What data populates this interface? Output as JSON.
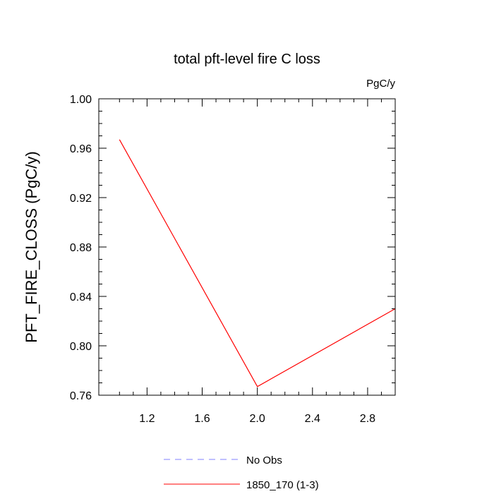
{
  "chart_data": {
    "type": "line",
    "title": "total pft-level fire C loss",
    "units_label": "PgC/y",
    "xlabel": "",
    "ylabel": "PFT_FIRE_CLOSS  (PgC/y)",
    "xlim": [
      0.85,
      3.0
    ],
    "ylim": [
      0.76,
      1.0
    ],
    "x_ticks": [
      1.2,
      1.6,
      2.0,
      2.4,
      2.8
    ],
    "x_tick_labels": [
      "1.2",
      "1.6",
      "2.0",
      "2.4",
      "2.8"
    ],
    "y_ticks": [
      0.76,
      0.8,
      0.84,
      0.88,
      0.92,
      0.96,
      1.0
    ],
    "y_tick_labels": [
      "0.76",
      "0.80",
      "0.84",
      "0.88",
      "0.92",
      "0.96",
      "1.00"
    ],
    "grid": false,
    "legend_position": "bottom",
    "series": [
      {
        "name": "No Obs",
        "color": "#8080ff",
        "dashed": true,
        "x": [],
        "y": []
      },
      {
        "name": "1850_170 (1-3)",
        "color": "#ff0000",
        "dashed": false,
        "x": [
          1.0,
          2.0,
          3.0
        ],
        "y": [
          0.967,
          0.767,
          0.83
        ]
      }
    ]
  }
}
